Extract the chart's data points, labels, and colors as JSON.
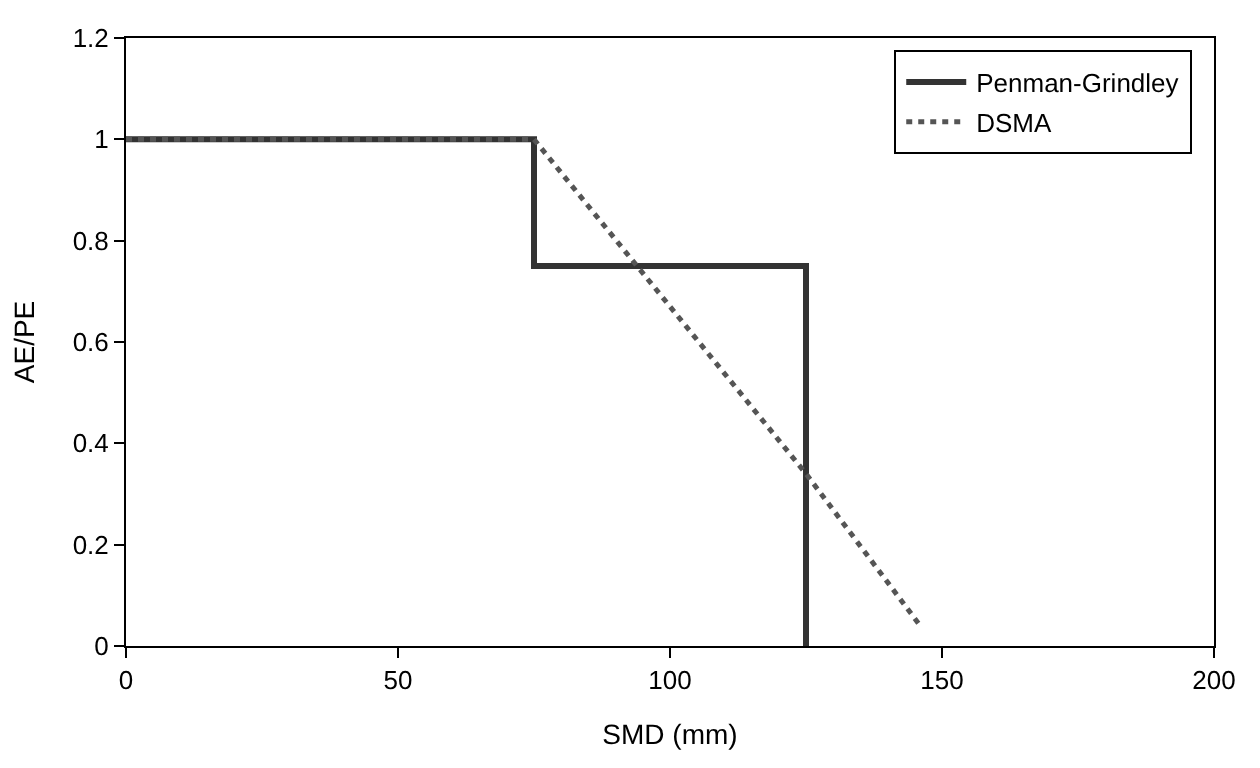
{
  "chart_data": {
    "type": "line",
    "xlabel": "SMD (mm)",
    "ylabel": "AE/PE",
    "xlim": [
      0,
      200
    ],
    "xticks": [
      0,
      50,
      100,
      150,
      200
    ],
    "ylim": [
      0,
      1.2
    ],
    "yticks": [
      0,
      0.2,
      0.4,
      0.6,
      0.8,
      1,
      1.2
    ],
    "series": [
      {
        "name": "Penman-Grindley",
        "color": "#333333",
        "line_style": "solid",
        "x": [
          0,
          75,
          75,
          125,
          125
        ],
        "values": [
          1,
          1,
          0.75,
          0.75,
          0
        ]
      },
      {
        "name": "DSMA",
        "color": "#555555",
        "line_style": "dotted",
        "x": [
          0,
          75,
          125,
          146
        ],
        "values": [
          1,
          1,
          0.34,
          0.04
        ]
      }
    ],
    "legend": "top right",
    "marker": "none"
  }
}
